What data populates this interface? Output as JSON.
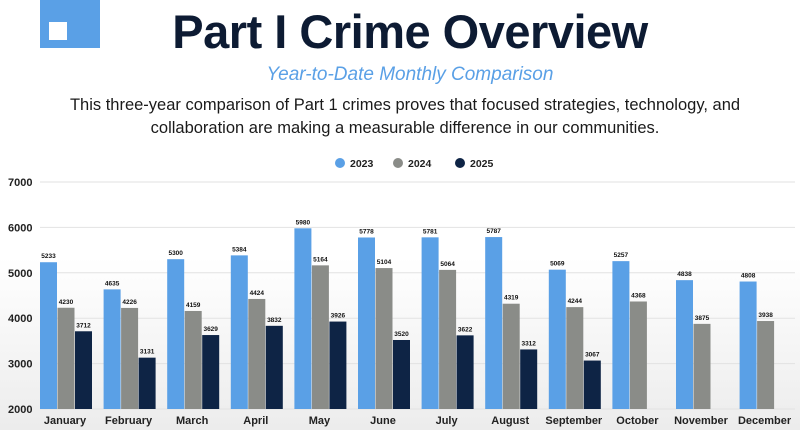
{
  "header": {
    "title": "Part I Crime Overview",
    "subtitle": "Year-to-Date Monthly Comparison",
    "description": "This three-year comparison of Part 1 crimes proves that focused strategies, technology, and collaboration are making a measurable difference in our communities."
  },
  "chart_data": {
    "type": "bar",
    "title": "Year-to-Date Monthly Comparison",
    "xlabel": "",
    "ylabel": "",
    "ylim": [
      2000,
      7000
    ],
    "yticks": [
      "2000",
      "3000",
      "4000",
      "5000",
      "6000",
      "7000"
    ],
    "grid": true,
    "legend_position": "top-center",
    "categories": [
      "January",
      "February",
      "March",
      "April",
      "May",
      "June",
      "July",
      "August",
      "September",
      "October",
      "November",
      "December"
    ],
    "series": [
      {
        "name": "2023",
        "color": "#5aa0e6",
        "values": [
          5233,
          4635,
          5300,
          5384,
          5980,
          5778,
          5781,
          5787,
          5069,
          5257,
          4838,
          4808
        ]
      },
      {
        "name": "2024",
        "color": "#8a8c88",
        "values": [
          4230,
          4226,
          4159,
          4424,
          5164,
          5104,
          5064,
          4319,
          4244,
          4368,
          3875,
          3938
        ]
      },
      {
        "name": "2025",
        "color": "#0e2445",
        "values": [
          3712,
          3131,
          3629,
          3832,
          3926,
          3520,
          3622,
          3312,
          3067,
          null,
          null,
          null
        ]
      }
    ]
  }
}
